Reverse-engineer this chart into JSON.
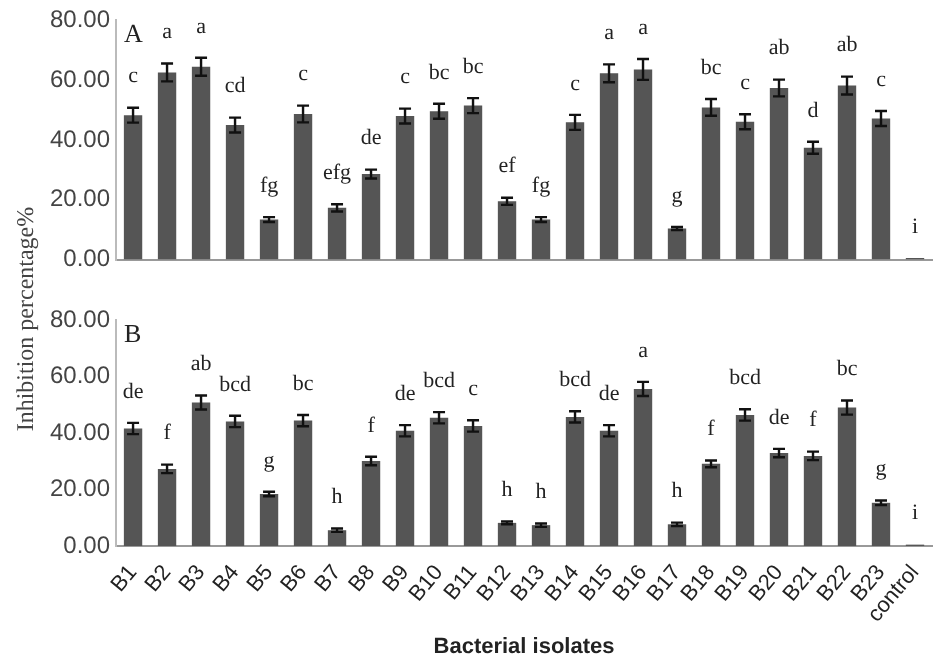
{
  "chart_data": [
    {
      "type": "bar",
      "ylabel": "Inhibition percentage%",
      "annotations": [
        "A"
      ],
      "categories": [
        null,
        null,
        null,
        null,
        null,
        null,
        null,
        null,
        null,
        null,
        null,
        null,
        null,
        null,
        null,
        null,
        null,
        null,
        null,
        null,
        null,
        null,
        null,
        null
      ],
      "values": [
        48.3,
        62.6,
        64.5,
        45,
        13.4,
        48.7,
        17.3,
        28.6,
        48,
        49.6,
        51.5,
        19.5,
        13.4,
        45.9,
        62.3,
        63.6,
        10.4,
        50.9,
        46.1,
        57.4,
        37.4,
        58.2,
        47.2,
        0.5
      ],
      "errors": [
        2.5,
        3,
        3,
        2.5,
        0.8,
        2.8,
        1.2,
        1.5,
        2.5,
        2.5,
        2.5,
        1.2,
        0.8,
        2.5,
        3,
        3.5,
        0.5,
        2.8,
        2.5,
        2.8,
        2,
        3,
        2.5,
        null
      ],
      "value_labels": [
        "c",
        "a",
        "a",
        "cd",
        "fg",
        "c",
        "efg",
        "de",
        "c",
        "bc",
        "bc",
        "ef",
        "fg",
        "c",
        "a",
        "a",
        "g",
        "bc",
        "c",
        "ab",
        "d",
        "ab",
        "c",
        "i"
      ],
      "color": "#555555",
      "ylim": [
        0,
        80
      ],
      "yticks": [
        {
          "value": 0,
          "label": "0.00"
        },
        {
          "value": 20,
          "label": "20.00"
        },
        {
          "value": 40,
          "label": "40.00"
        },
        {
          "value": 60,
          "label": "60.00"
        },
        {
          "value": 80,
          "label": "80.00"
        }
      ],
      "grid": false,
      "tick_labels": "y"
    },
    {
      "type": "bar",
      "xlabel": "Bacterial isolates",
      "annotations": [
        "B"
      ],
      "categories": [
        "B1",
        "B2",
        "B3",
        "B4",
        "B5",
        "B6",
        "B7",
        "B8",
        "B9",
        "B10",
        "B11",
        "B12",
        "B13",
        "B14",
        "B15",
        "B16",
        "B17",
        "B18",
        "B19",
        "B20",
        "B21",
        "B22",
        "B23",
        "control"
      ],
      "values": [
        41.6,
        27.3,
        50.8,
        44.1,
        18.4,
        44.4,
        5.6,
        30.1,
        40.8,
        45.4,
        42.5,
        8.2,
        7.4,
        45.7,
        40.8,
        55.6,
        7.7,
        29.1,
        46.4,
        32.9,
        31.9,
        49,
        15.3,
        0.5
      ],
      "errors": [
        2,
        1.5,
        2.5,
        2,
        0.8,
        2,
        0.6,
        1.5,
        2,
        2,
        2,
        0.5,
        0.6,
        2,
        2,
        2.5,
        0.6,
        1.2,
        2,
        1.5,
        1.5,
        2.5,
        0.8,
        null
      ],
      "value_labels": [
        "de",
        "f",
        "ab",
        "bcd",
        "g",
        "bc",
        "h",
        "f",
        "de",
        "bcd",
        "c",
        "h",
        "h",
        "bcd",
        "de",
        "a",
        "h",
        "f",
        "bcd",
        "de",
        "f",
        "bc",
        "g",
        "i"
      ],
      "color": "#555555",
      "ylim": [
        0,
        80
      ],
      "yticks": [
        {
          "value": 0,
          "label": "0.00"
        },
        {
          "value": 20,
          "label": "20.00"
        },
        {
          "value": 40,
          "label": "40.00"
        },
        {
          "value": 60,
          "label": "60.00"
        },
        {
          "value": 80,
          "label": "80.00"
        }
      ],
      "grid": false
    }
  ]
}
